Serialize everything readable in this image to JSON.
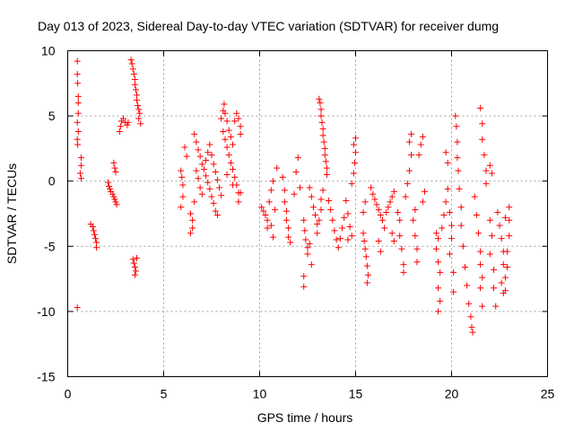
{
  "chart_data": {
    "type": "scatter",
    "title": "Day 013 of 2023, Sidereal Day-to-day VTEC variation (SDTVAR) for receiver dumg",
    "xlabel": "GPS time / hours",
    "ylabel": "SDTVAR / TECUs",
    "xlim": [
      0,
      25
    ],
    "ylim": [
      -15,
      10
    ],
    "xticks": [
      0,
      5,
      10,
      15,
      20,
      25
    ],
    "xtick_labels": [
      "0",
      "5",
      "10",
      "15",
      "20",
      "25"
    ],
    "yticks": [
      -15,
      -10,
      -5,
      0,
      5,
      10
    ],
    "ytick_labels": [
      "-15",
      "-10",
      "-5",
      "0",
      "5",
      "10"
    ],
    "grid": true,
    "marker": "plus",
    "series_color": "#ff0000",
    "series": [
      {
        "name": "SDTVAR",
        "points": [
          [
            0.5,
            9.2
          ],
          [
            0.5,
            8.2
          ],
          [
            0.52,
            7.5
          ],
          [
            0.55,
            6.5
          ],
          [
            0.55,
            6.0
          ],
          [
            0.55,
            5.2
          ],
          [
            0.5,
            4.5
          ],
          [
            0.55,
            3.8
          ],
          [
            0.5,
            3.2
          ],
          [
            0.52,
            2.8
          ],
          [
            0.7,
            1.8
          ],
          [
            0.7,
            1.2
          ],
          [
            0.65,
            0.6
          ],
          [
            0.7,
            0.2
          ],
          [
            0.5,
            -9.7
          ],
          [
            1.2,
            -3.3
          ],
          [
            1.3,
            -3.5
          ],
          [
            1.35,
            -3.8
          ],
          [
            1.4,
            -4.1
          ],
          [
            1.45,
            -4.4
          ],
          [
            1.5,
            -4.7
          ],
          [
            1.5,
            -5.1
          ],
          [
            2.1,
            -0.1
          ],
          [
            2.15,
            -0.4
          ],
          [
            2.2,
            -0.6
          ],
          [
            2.25,
            -0.8
          ],
          [
            2.35,
            -1.0
          ],
          [
            2.4,
            -1.2
          ],
          [
            2.45,
            -1.4
          ],
          [
            2.5,
            -1.6
          ],
          [
            2.55,
            -1.8
          ],
          [
            2.4,
            1.4
          ],
          [
            2.45,
            1.0
          ],
          [
            2.5,
            0.7
          ],
          [
            2.7,
            3.8
          ],
          [
            2.75,
            4.2
          ],
          [
            2.8,
            4.6
          ],
          [
            2.9,
            4.8
          ],
          [
            3.0,
            4.5
          ],
          [
            3.1,
            4.3
          ],
          [
            3.15,
            4.5
          ],
          [
            3.3,
            9.3
          ],
          [
            3.35,
            9.0
          ],
          [
            3.4,
            8.6
          ],
          [
            3.45,
            8.2
          ],
          [
            3.5,
            7.8
          ],
          [
            3.5,
            7.4
          ],
          [
            3.55,
            7.0
          ],
          [
            3.6,
            6.6
          ],
          [
            3.6,
            6.2
          ],
          [
            3.65,
            5.8
          ],
          [
            3.7,
            5.5
          ],
          [
            3.75,
            5.2
          ],
          [
            3.7,
            4.8
          ],
          [
            3.8,
            4.4
          ],
          [
            3.4,
            -6.0
          ],
          [
            3.45,
            -6.3
          ],
          [
            3.5,
            -6.6
          ],
          [
            3.55,
            -6.9
          ],
          [
            3.5,
            -7.2
          ],
          [
            3.6,
            -5.9
          ],
          [
            5.9,
            0.8
          ],
          [
            5.95,
            0.3
          ],
          [
            6.0,
            -0.3
          ],
          [
            6.0,
            -1.2
          ],
          [
            5.9,
            -2.0
          ],
          [
            6.1,
            2.6
          ],
          [
            6.2,
            1.9
          ],
          [
            6.4,
            -2.5
          ],
          [
            6.5,
            -3.0
          ],
          [
            6.5,
            -3.6
          ],
          [
            6.4,
            -4.0
          ],
          [
            6.6,
            -1.6
          ],
          [
            6.6,
            3.6
          ],
          [
            6.7,
            3.0
          ],
          [
            6.8,
            2.4
          ],
          [
            6.9,
            1.9
          ],
          [
            7.0,
            1.3
          ],
          [
            7.1,
            0.9
          ],
          [
            7.2,
            0.4
          ],
          [
            7.3,
            -0.1
          ],
          [
            7.4,
            -0.6
          ],
          [
            7.5,
            -1.2
          ],
          [
            7.6,
            -1.7
          ],
          [
            7.7,
            -2.3
          ],
          [
            7.8,
            -2.6
          ],
          [
            6.7,
            0.8
          ],
          [
            6.8,
            0.2
          ],
          [
            6.9,
            -0.5
          ],
          [
            7.0,
            -1.0
          ],
          [
            7.2,
            1.6
          ],
          [
            7.3,
            2.2
          ],
          [
            7.4,
            2.8
          ],
          [
            7.5,
            2.0
          ],
          [
            7.6,
            1.3
          ],
          [
            7.7,
            0.7
          ],
          [
            7.8,
            0.1
          ],
          [
            7.9,
            -0.5
          ],
          [
            8.0,
            -1.1
          ],
          [
            8.0,
            4.8
          ],
          [
            8.1,
            5.4
          ],
          [
            8.15,
            5.9
          ],
          [
            8.2,
            5.2
          ],
          [
            8.3,
            4.6
          ],
          [
            8.1,
            3.8
          ],
          [
            8.2,
            3.2
          ],
          [
            8.3,
            2.6
          ],
          [
            8.4,
            2.0
          ],
          [
            8.5,
            1.4
          ],
          [
            8.6,
            0.9
          ],
          [
            8.7,
            0.3
          ],
          [
            8.8,
            -0.3
          ],
          [
            8.9,
            -0.9
          ],
          [
            8.4,
            3.9
          ],
          [
            8.5,
            3.4
          ],
          [
            8.6,
            2.8
          ],
          [
            8.7,
            4.6
          ],
          [
            8.8,
            5.2
          ],
          [
            8.9,
            4.8
          ],
          [
            9.0,
            4.2
          ],
          [
            9.0,
            3.6
          ],
          [
            8.9,
            -1.6
          ],
          [
            9.0,
            -0.9
          ],
          [
            8.6,
            -0.3
          ],
          [
            8.3,
            0.5
          ],
          [
            10.1,
            -2.0
          ],
          [
            10.2,
            -2.3
          ],
          [
            10.3,
            -2.6
          ],
          [
            10.4,
            -3.0
          ],
          [
            10.4,
            -3.6
          ],
          [
            10.5,
            -1.6
          ],
          [
            10.6,
            -0.7
          ],
          [
            10.7,
            0.0
          ],
          [
            10.6,
            -3.4
          ],
          [
            10.7,
            -4.3
          ],
          [
            10.8,
            -2.2
          ],
          [
            10.9,
            1.0
          ],
          [
            11.2,
            0.3
          ],
          [
            11.3,
            -0.7
          ],
          [
            11.3,
            -1.6
          ],
          [
            11.4,
            -2.3
          ],
          [
            11.4,
            -3.0
          ],
          [
            11.5,
            -3.6
          ],
          [
            11.5,
            -4.3
          ],
          [
            11.6,
            -4.7
          ],
          [
            11.8,
            -1.0
          ],
          [
            11.9,
            0.7
          ],
          [
            12.0,
            1.8
          ],
          [
            12.1,
            -0.5
          ],
          [
            12.3,
            -3.0
          ],
          [
            12.35,
            -3.8
          ],
          [
            12.4,
            -4.5
          ],
          [
            12.5,
            -5.1
          ],
          [
            12.5,
            -5.6
          ],
          [
            12.6,
            -4.8
          ],
          [
            12.7,
            -6.4
          ],
          [
            12.3,
            -7.3
          ],
          [
            12.3,
            -8.1
          ],
          [
            12.6,
            -0.5
          ],
          [
            12.7,
            -1.2
          ],
          [
            12.8,
            -2.0
          ],
          [
            12.9,
            -2.6
          ],
          [
            13.0,
            -3.3
          ],
          [
            13.0,
            -4.0
          ],
          [
            13.1,
            -3.0
          ],
          [
            13.2,
            -2.2
          ],
          [
            13.2,
            -1.4
          ],
          [
            13.3,
            -0.7
          ],
          [
            13.1,
            6.3
          ],
          [
            13.15,
            6.0
          ],
          [
            13.2,
            5.5
          ],
          [
            13.2,
            5.0
          ],
          [
            13.25,
            4.5
          ],
          [
            13.3,
            4.0
          ],
          [
            13.3,
            3.5
          ],
          [
            13.35,
            3.0
          ],
          [
            13.4,
            2.5
          ],
          [
            13.4,
            2.0
          ],
          [
            13.45,
            1.5
          ],
          [
            13.5,
            1.0
          ],
          [
            13.5,
            0.5
          ],
          [
            13.6,
            -1.5
          ],
          [
            13.7,
            -2.2
          ],
          [
            13.8,
            -3.0
          ],
          [
            13.9,
            -3.8
          ],
          [
            14.0,
            -4.5
          ],
          [
            14.1,
            -5.1
          ],
          [
            14.2,
            -4.4
          ],
          [
            14.3,
            -3.6
          ],
          [
            14.4,
            -2.8
          ],
          [
            14.5,
            -1.5
          ],
          [
            14.6,
            -2.5
          ],
          [
            14.7,
            -3.5
          ],
          [
            14.6,
            -4.5
          ],
          [
            14.8,
            -0.2
          ],
          [
            14.9,
            0.6
          ],
          [
            14.95,
            1.4
          ],
          [
            15.0,
            2.2
          ],
          [
            14.9,
            2.8
          ],
          [
            15.0,
            3.3
          ],
          [
            14.8,
            -4.2
          ],
          [
            15.4,
            -4.0
          ],
          [
            15.45,
            -4.6
          ],
          [
            15.5,
            -5.2
          ],
          [
            15.55,
            -5.8
          ],
          [
            15.6,
            -6.5
          ],
          [
            15.65,
            -7.2
          ],
          [
            15.6,
            -7.8
          ],
          [
            15.4,
            -2.4
          ],
          [
            15.5,
            -1.6
          ],
          [
            15.8,
            -0.5
          ],
          [
            15.9,
            -1.0
          ],
          [
            16.0,
            -1.4
          ],
          [
            16.1,
            -1.8
          ],
          [
            16.2,
            -2.2
          ],
          [
            16.3,
            -2.6
          ],
          [
            16.4,
            -3.0
          ],
          [
            16.5,
            -3.6
          ],
          [
            16.2,
            -4.6
          ],
          [
            16.3,
            -5.4
          ],
          [
            16.6,
            -2.4
          ],
          [
            16.7,
            -2.0
          ],
          [
            16.8,
            -1.6
          ],
          [
            16.9,
            -1.2
          ],
          [
            17.0,
            -0.8
          ],
          [
            16.9,
            -4.0
          ],
          [
            17.0,
            -4.6
          ],
          [
            17.2,
            -2.4
          ],
          [
            17.3,
            -3.0
          ],
          [
            17.3,
            -4.2
          ],
          [
            17.4,
            -5.2
          ],
          [
            17.5,
            -6.4
          ],
          [
            17.5,
            -7.0
          ],
          [
            17.6,
            -1.2
          ],
          [
            17.7,
            -0.2
          ],
          [
            17.8,
            0.8
          ],
          [
            17.9,
            2.0
          ],
          [
            17.8,
            3.0
          ],
          [
            17.9,
            3.6
          ],
          [
            18.0,
            -3.0
          ],
          [
            18.1,
            -2.2
          ],
          [
            18.1,
            -4.2
          ],
          [
            18.2,
            -5.2
          ],
          [
            18.2,
            -6.2
          ],
          [
            18.3,
            2.0
          ],
          [
            18.4,
            2.8
          ],
          [
            18.5,
            3.4
          ],
          [
            18.6,
            -0.8
          ],
          [
            18.5,
            -1.6
          ],
          [
            19.2,
            -4.0
          ],
          [
            19.3,
            -4.4
          ],
          [
            19.2,
            -5.2
          ],
          [
            19.3,
            -6.2
          ],
          [
            19.4,
            -7.0
          ],
          [
            19.3,
            -8.2
          ],
          [
            19.4,
            -9.2
          ],
          [
            19.3,
            -10.0
          ],
          [
            19.5,
            -3.6
          ],
          [
            19.6,
            -2.6
          ],
          [
            19.7,
            -1.6
          ],
          [
            19.8,
            -0.6
          ],
          [
            19.9,
            -2.4
          ],
          [
            20.0,
            -3.4
          ],
          [
            20.0,
            -4.4
          ],
          [
            19.9,
            -5.6
          ],
          [
            20.1,
            -7.0
          ],
          [
            20.1,
            -8.5
          ],
          [
            19.7,
            2.2
          ],
          [
            19.8,
            1.4
          ],
          [
            20.2,
            5.0
          ],
          [
            20.25,
            4.2
          ],
          [
            20.3,
            3.0
          ],
          [
            20.3,
            1.8
          ],
          [
            20.35,
            0.8
          ],
          [
            20.4,
            -0.6
          ],
          [
            20.5,
            -2.0
          ],
          [
            20.5,
            -3.4
          ],
          [
            20.6,
            -5.0
          ],
          [
            20.7,
            -6.6
          ],
          [
            20.8,
            -8.0
          ],
          [
            20.9,
            -9.4
          ],
          [
            21.0,
            -10.4
          ],
          [
            21.05,
            -11.2
          ],
          [
            21.1,
            -11.6
          ],
          [
            21.2,
            -1.2
          ],
          [
            21.3,
            -2.6
          ],
          [
            21.4,
            -4.0
          ],
          [
            21.5,
            -5.4
          ],
          [
            21.5,
            -6.4
          ],
          [
            21.6,
            -7.4
          ],
          [
            21.5,
            -8.2
          ],
          [
            21.6,
            -9.6
          ],
          [
            21.5,
            5.6
          ],
          [
            21.6,
            4.4
          ],
          [
            21.6,
            3.2
          ],
          [
            21.7,
            2.0
          ],
          [
            21.8,
            0.8
          ],
          [
            21.8,
            -0.2
          ],
          [
            22.0,
            1.2
          ],
          [
            22.1,
            0.6
          ],
          [
            22.0,
            -3.0
          ],
          [
            22.1,
            -4.2
          ],
          [
            22.0,
            -5.6
          ],
          [
            22.2,
            -6.8
          ],
          [
            22.2,
            -8.2
          ],
          [
            22.3,
            -9.6
          ],
          [
            22.4,
            -2.4
          ],
          [
            22.5,
            -3.4
          ],
          [
            22.6,
            -4.4
          ],
          [
            22.7,
            -5.4
          ],
          [
            22.7,
            -6.4
          ],
          [
            22.8,
            -7.4
          ],
          [
            22.8,
            -8.4
          ],
          [
            22.9,
            -6.6
          ],
          [
            22.9,
            -5.4
          ],
          [
            23.0,
            -4.2
          ],
          [
            23.0,
            -3.0
          ],
          [
            23.0,
            -2.0
          ],
          [
            22.8,
            -2.8
          ],
          [
            22.6,
            -7.8
          ],
          [
            22.7,
            -8.6
          ]
        ]
      }
    ]
  }
}
